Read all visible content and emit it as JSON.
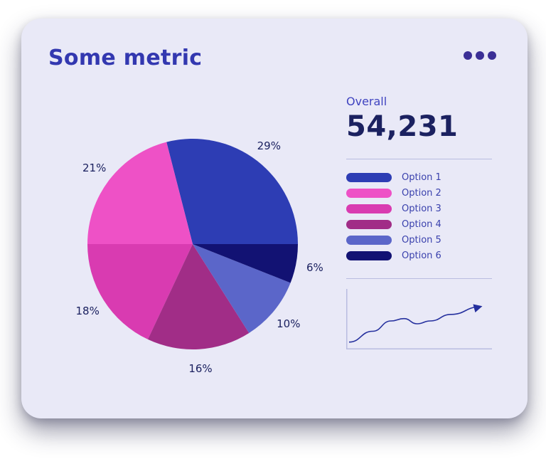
{
  "card": {
    "title": "Some metric"
  },
  "menu": {
    "icon": "ellipsis-icon"
  },
  "overall": {
    "label": "Overall",
    "value": "54,231"
  },
  "colors": {
    "card_bg": "#e9e9f7",
    "title": "#3338b0",
    "menu_dots": "#3b2f96",
    "text_dark": "#1b2160",
    "overall_label": "#3f43c0",
    "divider": "#b9bce0",
    "legend_label": "#3a41ad",
    "spark_line": "#25309e",
    "spark_axis": "#b9bce0"
  },
  "chart_data": [
    {
      "type": "pie",
      "title": "Some metric",
      "labels": [
        "Option 1",
        "Option 2",
        "Option 3",
        "Option 4",
        "Option 5",
        "Option 6"
      ],
      "values": [
        29,
        21,
        18,
        16,
        10,
        6
      ],
      "unit": "%",
      "colors": [
        "#2d3db4",
        "#ee51c6",
        "#d93bb1",
        "#a12d87",
        "#5b66c9",
        "#121273"
      ],
      "start_angle_deg": 0,
      "direction": "counterclockwise",
      "labels_position": "outside",
      "legend_position": "right"
    },
    {
      "type": "line",
      "name": "trend-sparkline",
      "x": [
        0,
        18,
        32,
        42,
        52,
        62,
        78,
        100
      ],
      "y": [
        5,
        28,
        50,
        55,
        44,
        50,
        64,
        80
      ],
      "arrow_end": true,
      "axes": "left-bottom",
      "grid": false
    }
  ]
}
